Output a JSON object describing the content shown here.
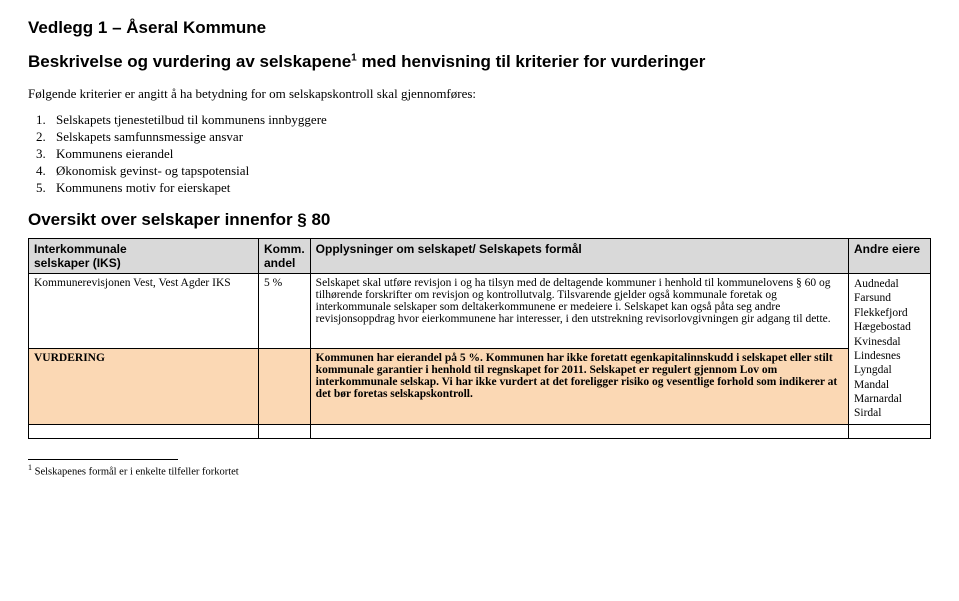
{
  "doc": {
    "title": "Vedlegg 1 – Åseral Kommune",
    "subtitle_pre": "Beskrivelse og vurdering av selskapene",
    "subtitle_sup": "1",
    "subtitle_post": " med henvisning til kriterier for vurderinger",
    "intro": "Følgende kriterier er angitt å ha betydning for om selskapskontroll skal gjennomføres:",
    "criteria": [
      "Selskapets tjenestetilbud til kommunens innbyggere",
      "Selskapets samfunnsmessige ansvar",
      "Kommunens eierandel",
      "Økonomisk gevinst- og tapspotensial",
      "Kommunens motiv for eierskapet"
    ],
    "section_head": "Oversikt over selskaper innenfor § 80",
    "footnote_num": "1",
    "footnote_text": " Selskapenes formål er i enkelte tilfeller forkortet"
  },
  "table": {
    "headers": {
      "col1_line1": "Interkommunale",
      "col1_line2": "selskaper (IKS)",
      "col2_line1": "Komm.",
      "col2_line2": "andel",
      "col3": "Opplysninger om selskapet/ Selskapets formål",
      "col4": "Andre eiere"
    },
    "row1": {
      "name": "Kommunerevisjonen Vest, Vest Agder IKS",
      "pct": "5 %",
      "desc": "Selskapet skal utføre revisjon i og ha tilsyn med de deltagende kommuner i henhold til kommunelovens § 60 og tilhørende forskrifter om revisjon og kontrollutvalg. Tilsvarende gjelder også kommunale foretak og interkommunale selskaper som deltakerkommunene er medeiere i. Selskapet kan også påta seg andre revisjonsoppdrag hvor eierkommunene har interesser, i den utstrekning revisorlovgivningen gir adgang til dette.",
      "eiere": [
        "Audnedal",
        "Farsund",
        "Flekkefjord",
        "Hægebostad",
        "Kvinesdal",
        "Lindesnes",
        "Lyngdal",
        "Mandal",
        "Marnardal",
        "Sirdal"
      ]
    },
    "vurdering": {
      "label": "VURDERING",
      "text": "Kommunen har eierandel på 5 %. Kommunen har ikke foretatt egenkapitalinnskudd i selskapet eller stilt kommunale garantier i henhold til regnskapet for 2011. Selskapet er regulert gjennom Lov om interkommunale selskap. Vi har ikke vurdert at det foreligger risiko og vesentlige forhold som indikerer at det bør foretas selskapskontroll."
    }
  },
  "colors": {
    "header_bg": "#d9d9d9",
    "highlight_bg": "#fbd8b4",
    "text": "#000000",
    "bg": "#ffffff"
  }
}
